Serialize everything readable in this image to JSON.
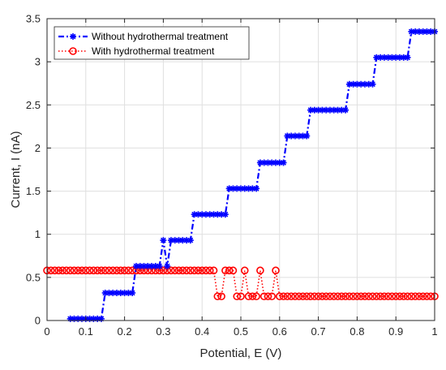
{
  "chart_data": {
    "type": "line",
    "title": "",
    "xlabel": "Potential, E (V)",
    "ylabel": "Current, I (nA)",
    "xlim": [
      0,
      1
    ],
    "ylim": [
      0,
      3.5
    ],
    "xticks": [
      "0",
      "0.1",
      "0.2",
      "0.3",
      "0.4",
      "0.5",
      "0.6",
      "0.7",
      "0.8",
      "0.9",
      "1"
    ],
    "yticks": [
      "0",
      "0.5",
      "1",
      "1.5",
      "2",
      "2.5",
      "3",
      "3.5"
    ],
    "grid": true,
    "legend_position": "top-left",
    "series": [
      {
        "name": "Without hydrothermal treatment",
        "color": "#0000ff",
        "line_style": "dash-dot",
        "marker": "asterisk",
        "x": [
          0.06,
          0.07,
          0.08,
          0.09,
          0.1,
          0.11,
          0.12,
          0.13,
          0.14,
          0.15,
          0.16,
          0.17,
          0.18,
          0.19,
          0.2,
          0.21,
          0.22,
          0.23,
          0.24,
          0.25,
          0.26,
          0.27,
          0.28,
          0.29,
          0.3,
          0.31,
          0.32,
          0.33,
          0.34,
          0.35,
          0.36,
          0.37,
          0.38,
          0.39,
          0.4,
          0.41,
          0.42,
          0.43,
          0.44,
          0.45,
          0.46,
          0.47,
          0.48,
          0.49,
          0.5,
          0.51,
          0.52,
          0.53,
          0.54,
          0.55,
          0.56,
          0.57,
          0.58,
          0.59,
          0.6,
          0.61,
          0.62,
          0.63,
          0.64,
          0.65,
          0.66,
          0.67,
          0.68,
          0.69,
          0.7,
          0.71,
          0.72,
          0.73,
          0.74,
          0.75,
          0.76,
          0.77,
          0.78,
          0.79,
          0.8,
          0.81,
          0.82,
          0.83,
          0.84,
          0.85,
          0.86,
          0.87,
          0.88,
          0.89,
          0.9,
          0.91,
          0.92,
          0.93,
          0.94,
          0.95,
          0.96,
          0.97,
          0.98,
          0.99,
          1.0
        ],
        "y": [
          0.02,
          0.02,
          0.02,
          0.02,
          0.02,
          0.02,
          0.02,
          0.02,
          0.02,
          0.32,
          0.32,
          0.32,
          0.32,
          0.32,
          0.32,
          0.32,
          0.32,
          0.63,
          0.63,
          0.63,
          0.63,
          0.63,
          0.63,
          0.63,
          0.93,
          0.63,
          0.93,
          0.93,
          0.93,
          0.93,
          0.93,
          0.93,
          1.23,
          1.23,
          1.23,
          1.23,
          1.23,
          1.23,
          1.23,
          1.23,
          1.23,
          1.53,
          1.53,
          1.53,
          1.53,
          1.53,
          1.53,
          1.53,
          1.53,
          1.83,
          1.83,
          1.83,
          1.83,
          1.83,
          1.83,
          1.83,
          2.14,
          2.14,
          2.14,
          2.14,
          2.14,
          2.14,
          2.44,
          2.44,
          2.44,
          2.44,
          2.44,
          2.44,
          2.44,
          2.44,
          2.44,
          2.44,
          2.74,
          2.74,
          2.74,
          2.74,
          2.74,
          2.74,
          2.74,
          3.05,
          3.05,
          3.05,
          3.05,
          3.05,
          3.05,
          3.05,
          3.05,
          3.05,
          3.35,
          3.35,
          3.35,
          3.35,
          3.35,
          3.35,
          3.35
        ]
      },
      {
        "name": "With hydrothermal treatment",
        "color": "#ff0000",
        "line_style": "dotted",
        "marker": "circle",
        "x": [
          0.0,
          0.01,
          0.02,
          0.03,
          0.04,
          0.05,
          0.06,
          0.07,
          0.08,
          0.09,
          0.1,
          0.11,
          0.12,
          0.13,
          0.14,
          0.15,
          0.16,
          0.17,
          0.18,
          0.19,
          0.2,
          0.21,
          0.22,
          0.23,
          0.24,
          0.25,
          0.26,
          0.27,
          0.28,
          0.29,
          0.3,
          0.31,
          0.32,
          0.33,
          0.34,
          0.35,
          0.36,
          0.37,
          0.38,
          0.39,
          0.4,
          0.41,
          0.42,
          0.43,
          0.44,
          0.45,
          0.46,
          0.47,
          0.48,
          0.49,
          0.5,
          0.51,
          0.52,
          0.53,
          0.54,
          0.55,
          0.56,
          0.57,
          0.58,
          0.59,
          0.6,
          0.61,
          0.62,
          0.63,
          0.64,
          0.65,
          0.66,
          0.67,
          0.68,
          0.69,
          0.7,
          0.71,
          0.72,
          0.73,
          0.74,
          0.75,
          0.76,
          0.77,
          0.78,
          0.79,
          0.8,
          0.81,
          0.82,
          0.83,
          0.84,
          0.85,
          0.86,
          0.87,
          0.88,
          0.89,
          0.9,
          0.91,
          0.92,
          0.93,
          0.94,
          0.95,
          0.96,
          0.97,
          0.98,
          0.99,
          1.0
        ],
        "y": [
          0.58,
          0.58,
          0.58,
          0.58,
          0.58,
          0.58,
          0.58,
          0.58,
          0.58,
          0.58,
          0.58,
          0.58,
          0.58,
          0.58,
          0.58,
          0.58,
          0.58,
          0.58,
          0.58,
          0.58,
          0.58,
          0.58,
          0.58,
          0.58,
          0.58,
          0.58,
          0.58,
          0.58,
          0.58,
          0.58,
          0.58,
          0.58,
          0.58,
          0.58,
          0.58,
          0.58,
          0.58,
          0.58,
          0.58,
          0.58,
          0.58,
          0.58,
          0.58,
          0.58,
          0.28,
          0.28,
          0.58,
          0.58,
          0.58,
          0.28,
          0.28,
          0.58,
          0.28,
          0.28,
          0.28,
          0.58,
          0.28,
          0.28,
          0.28,
          0.58,
          0.28,
          0.28,
          0.28,
          0.28,
          0.28,
          0.28,
          0.28,
          0.28,
          0.28,
          0.28,
          0.28,
          0.28,
          0.28,
          0.28,
          0.28,
          0.28,
          0.28,
          0.28,
          0.28,
          0.28,
          0.28,
          0.28,
          0.28,
          0.28,
          0.28,
          0.28,
          0.28,
          0.28,
          0.28,
          0.28,
          0.28,
          0.28,
          0.28,
          0.28,
          0.28,
          0.28,
          0.28,
          0.28,
          0.28,
          0.28,
          0.28
        ]
      }
    ]
  }
}
